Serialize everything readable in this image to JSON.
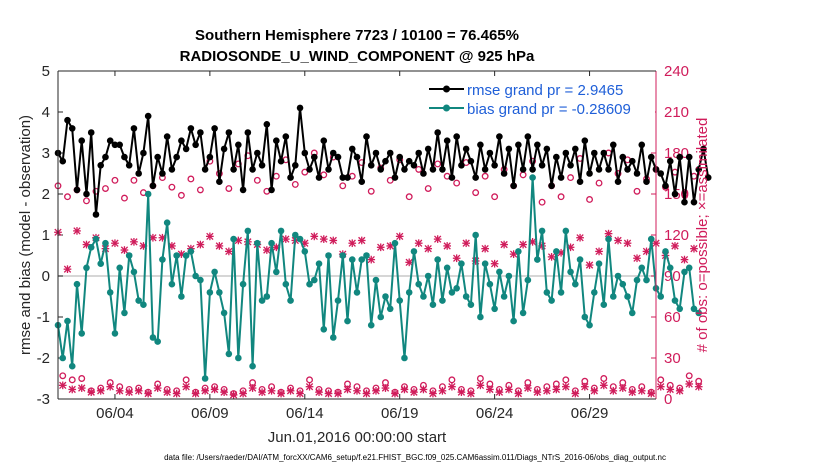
{
  "chart_data": {
    "type": "line",
    "title": "Southern Hemisphere 7723 / 10100 = 76.465%",
    "subtitle": "RADIOSONDE_U_WIND_COMPONENT @ 925 hPa",
    "xlabel": "Jun.01,2016 00:00:00 start",
    "ylabel": "rmse and bias (model - observation)",
    "y2label": "# of obs: o=possible; ×=assimilated",
    "footnote": "data file: /Users/raeder/DAI/ATM_forcXX/CAM6_setup/f.e21.FHIST_BGC.f09_025.CAM6assim.011/Diags_NTrS_2016-06/obs_diag_output.nc",
    "xlim": [
      1,
      32.5
    ],
    "ylim": [
      -3,
      5
    ],
    "y2lim": [
      0,
      240
    ],
    "x_ticks": [
      4,
      9,
      14,
      19,
      24,
      29
    ],
    "x_tick_labels": [
      "06/04",
      "06/09",
      "06/14",
      "06/19",
      "06/24",
      "06/29"
    ],
    "y_ticks": [
      -3,
      -2,
      -1,
      0,
      1,
      2,
      3,
      4,
      5
    ],
    "y_tick_labels": [
      "-3",
      "-2",
      "-1",
      "0",
      "1",
      "2",
      "3",
      "4",
      "5"
    ],
    "y2_ticks": [
      0,
      30,
      60,
      90,
      120,
      150,
      180,
      210,
      240
    ],
    "y2_tick_labels": [
      "0",
      "30",
      "60",
      "90",
      "120",
      "150",
      "180",
      "210",
      "240"
    ],
    "legend": [
      {
        "label": "rmse grand pr = 2.9465",
        "color": "#000000"
      },
      {
        "label": "bias grand pr = -0.28609",
        "color": "#11877f"
      }
    ],
    "series": [
      {
        "name": "rmse",
        "color": "#000000",
        "x_start": 1,
        "x_step": 0.25,
        "values": [
          3.0,
          2.8,
          3.8,
          3.6,
          2.1,
          3.3,
          2.0,
          3.5,
          1.5,
          2.7,
          2.9,
          3.3,
          3.2,
          3.2,
          2.9,
          2.7,
          3.6,
          2.5,
          3.0,
          3.9,
          2.2,
          2.9,
          2.5,
          3.4,
          2.6,
          2.9,
          3.3,
          3.1,
          3.6,
          3.2,
          3.5,
          2.6,
          2.9,
          3.6,
          2.3,
          3.1,
          3.5,
          2.6,
          3.2,
          2.1,
          3.5,
          2.6,
          3.0,
          2.7,
          3.7,
          2.1,
          3.3,
          2.8,
          3.4,
          2.4,
          2.7,
          4.1,
          3.0,
          2.6,
          2.9,
          2.4,
          3.3,
          2.6,
          3.0,
          2.9,
          2.4,
          2.4,
          3.1,
          2.9,
          2.3,
          3.4,
          2.7,
          3.0,
          2.6,
          2.8,
          3.0,
          2.4,
          2.9,
          2.6,
          2.8,
          2.7,
          3.0,
          2.5,
          3.1,
          2.6,
          3.5,
          2.6,
          3.3,
          2.4,
          3.4,
          2.7,
          3.1,
          2.8,
          2.4,
          3.2,
          2.6,
          3.0,
          2.7,
          3.4,
          2.5,
          3.1,
          2.2,
          3.2,
          2.6,
          3.4,
          2.6,
          3.2,
          2.7,
          3.1,
          2.2,
          2.9,
          2.4,
          3.0,
          2.7,
          3.1,
          2.3,
          3.3,
          2.5,
          3.0,
          2.6,
          3.0,
          2.6,
          3.2,
          2.3,
          2.9,
          2.6,
          2.8,
          2.5,
          3.2,
          2.3,
          2.9,
          2.6,
          2.5,
          2.2,
          2.8,
          2.0,
          2.9,
          1.8,
          2.9,
          1.8,
          2.6,
          3.1,
          2.4
        ]
      },
      {
        "name": "bias",
        "color": "#11877f",
        "x_start": 1,
        "x_step": 0.25,
        "values": [
          -1.2,
          -2.0,
          -1.1,
          -2.2,
          -0.2,
          -1.4,
          0.2,
          0.7,
          0.9,
          0.3,
          0.8,
          -0.4,
          -1.4,
          0.2,
          -0.9,
          0.5,
          0.1,
          -0.6,
          -0.7,
          2.0,
          -1.5,
          -1.6,
          0.4,
          1.3,
          -0.2,
          0.5,
          -0.5,
          0.5,
          0.6,
          0.0,
          -0.1,
          -2.5,
          -0.4,
          0.1,
          -0.4,
          -0.9,
          -1.9,
          0.9,
          -2.0,
          -0.2,
          1.1,
          -2.2,
          0.8,
          -0.6,
          -0.5,
          0.8,
          0.1,
          1.1,
          -0.2,
          -0.6,
          1.0,
          0.9,
          0.6,
          -0.2,
          -0.1,
          0.3,
          -1.3,
          0.5,
          -1.5,
          -0.6,
          0.5,
          -1.1,
          0.4,
          -0.4,
          0.4,
          0.5,
          -1.2,
          -0.1,
          -1.0,
          -0.5,
          -0.8,
          0.8,
          -0.6,
          -2.0,
          -0.4,
          0.6,
          -0.2,
          -0.5,
          0.0,
          -0.7,
          0.4,
          -0.6,
          0.2,
          -0.4,
          -0.3,
          0.3,
          -0.5,
          -0.7,
          1.0,
          -1.0,
          0.3,
          -0.2,
          -0.8,
          0.1,
          -0.5,
          0.0,
          -1.1,
          0.6,
          -0.9,
          -0.1,
          2.4,
          0.4,
          1.1,
          -0.4,
          -0.6,
          0.6,
          -0.4,
          1.1,
          0.1,
          -0.2,
          0.4,
          -1.0,
          -1.2,
          -0.4,
          0.3,
          -0.7,
          0.9,
          -0.5,
          0.0,
          -0.2,
          -0.5,
          -0.9,
          -0.1,
          0.2,
          -0.1,
          0.9,
          -0.3,
          -0.5,
          0.6,
          0.2,
          -0.6,
          -0.8,
          0.1,
          0.2,
          -0.8,
          -0.9
        ]
      },
      {
        "name": "obs possible (o)",
        "color": "#d01c5b",
        "axis": "right",
        "x_start": 1,
        "x_step": 0.25,
        "values": [
          156,
          17,
          148,
          14,
          153,
          15,
          145,
          6,
          152,
          8,
          154,
          12,
          160,
          9,
          147,
          7,
          160,
          8,
          151,
          5,
          156,
          11,
          162,
          7,
          155,
          6,
          149,
          14,
          161,
          5,
          153,
          8,
          174,
          9,
          165,
          7,
          154,
          4,
          172,
          6,
          178,
          12,
          160,
          7,
          152,
          9,
          163,
          5,
          175,
          8,
          157,
          6,
          166,
          14,
          180,
          7,
          164,
          6,
          177,
          5,
          156,
          11,
          163,
          9,
          173,
          6,
          152,
          8,
          169,
          12,
          160,
          5,
          175,
          9,
          148,
          7,
          168,
          10,
          154,
          6,
          172,
          9,
          163,
          14,
          158,
          7,
          173,
          6,
          151,
          15,
          163,
          11,
          148,
          7,
          168,
          10,
          156,
          6,
          164,
          12,
          174,
          7,
          144,
          9,
          156,
          11,
          148,
          14,
          162,
          6,
          176,
          13,
          146,
          8,
          158,
          15,
          180,
          9,
          165,
          12,
          175,
          7,
          152,
          9,
          161,
          5,
          168,
          14,
          155,
          10,
          166,
          8,
          150,
          17,
          163,
          13
        ]
      },
      {
        "name": "obs assimilated (×)",
        "color": "#d01c5b",
        "axis": "right",
        "x_start": 1,
        "x_step": 0.25,
        "values": [
          122,
          10,
          95,
          7,
          123,
          8,
          113,
          5,
          118,
          6,
          110,
          9,
          114,
          6,
          109,
          5,
          115,
          6,
          112,
          4,
          118,
          8,
          118,
          5,
          112,
          4,
          106,
          9,
          110,
          4,
          113,
          6,
          119,
          7,
          112,
          5,
          108,
          3,
          116,
          4,
          115,
          8,
          113,
          5,
          109,
          6,
          111,
          4,
          117,
          6,
          116,
          4,
          114,
          9,
          119,
          5,
          117,
          4,
          116,
          4,
          106,
          7,
          114,
          6,
          116,
          4,
          102,
          6,
          111,
          8,
          112,
          4,
          119,
          7,
          100,
          5,
          114,
          7,
          110,
          4,
          117,
          6,
          112,
          9,
          103,
          5,
          114,
          4,
          101,
          10,
          110,
          7,
          99,
          5,
          113,
          7,
          106,
          4,
          113,
          8,
          115,
          5,
          112,
          6,
          104,
          7,
          107,
          9,
          111,
          4,
          118,
          9,
          98,
          6,
          108,
          10,
          121,
          6,
          116,
          8,
          114,
          5,
          103,
          6,
          108,
          4,
          114,
          9,
          105,
          7,
          112,
          6,
          102,
          11,
          110,
          9
        ]
      }
    ]
  }
}
